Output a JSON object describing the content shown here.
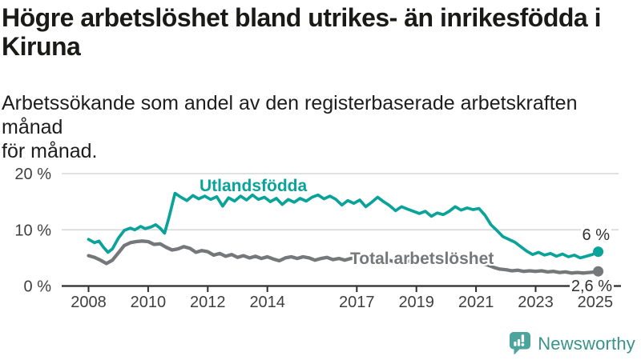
{
  "header": {
    "title_lines": [
      "Högre arbetslöshet bland utrikes- än inrikesfödda i",
      "Kiruna"
    ],
    "subtitle_lines": [
      "Arbetssökande som andel av den registerbaserade arbetskraften månad",
      "för månad."
    ]
  },
  "chart_data": {
    "type": "line",
    "title": "Högre arbetslöshet bland utrikes- än inrikesfödda i Kiruna",
    "subtitle": "Arbetssökande som andel av den registerbaserade arbetskraften månad för månad.",
    "unit": "%",
    "xlim": [
      2008,
      2025.3
    ],
    "ylim": [
      0,
      20
    ],
    "grid": "horizontal-only",
    "legend_position": "inline-labels",
    "x_ticks": [
      {
        "value": 2008,
        "label": "2008"
      },
      {
        "value": 2010,
        "label": "2010"
      },
      {
        "value": 2012,
        "label": "2012"
      },
      {
        "value": 2014,
        "label": "2014"
      },
      {
        "value": 2017,
        "label": "2017"
      },
      {
        "value": 2019,
        "label": "2019"
      },
      {
        "value": 2021,
        "label": "2021"
      },
      {
        "value": 2023,
        "label": "2023"
      },
      {
        "value": 2025,
        "label": "2025"
      }
    ],
    "y_ticks": [
      {
        "value": 0,
        "label": "0 %"
      },
      {
        "value": 10,
        "label": "10 %"
      },
      {
        "value": 20,
        "label": "20 %"
      }
    ],
    "series": [
      {
        "name": "Utlandsfödda",
        "color": "#0aa39a",
        "end_label": "6 %",
        "end_value": 6,
        "points": [
          [
            2008.0,
            8.3
          ],
          [
            2008.2,
            7.7
          ],
          [
            2008.35,
            8.0
          ],
          [
            2008.5,
            6.9
          ],
          [
            2008.65,
            6.0
          ],
          [
            2008.8,
            6.6
          ],
          [
            2009.0,
            8.5
          ],
          [
            2009.2,
            9.9
          ],
          [
            2009.4,
            10.3
          ],
          [
            2009.55,
            10.0
          ],
          [
            2009.75,
            10.6
          ],
          [
            2009.9,
            10.2
          ],
          [
            2010.1,
            10.5
          ],
          [
            2010.25,
            10.9
          ],
          [
            2010.4,
            10.3
          ],
          [
            2010.55,
            9.4
          ],
          [
            2010.7,
            12.2
          ],
          [
            2010.9,
            16.5
          ],
          [
            2011.1,
            15.8
          ],
          [
            2011.3,
            15.2
          ],
          [
            2011.5,
            16.1
          ],
          [
            2011.7,
            15.5
          ],
          [
            2011.9,
            16.0
          ],
          [
            2012.1,
            15.4
          ],
          [
            2012.3,
            15.9
          ],
          [
            2012.5,
            14.2
          ],
          [
            2012.7,
            15.7
          ],
          [
            2012.9,
            15.1
          ],
          [
            2013.1,
            16.0
          ],
          [
            2013.3,
            15.3
          ],
          [
            2013.5,
            16.2
          ],
          [
            2013.7,
            15.4
          ],
          [
            2013.9,
            15.8
          ],
          [
            2014.1,
            15.0
          ],
          [
            2014.3,
            15.6
          ],
          [
            2014.5,
            14.5
          ],
          [
            2014.7,
            15.4
          ],
          [
            2014.9,
            14.9
          ],
          [
            2015.1,
            15.6
          ],
          [
            2015.3,
            15.1
          ],
          [
            2015.5,
            15.8
          ],
          [
            2015.7,
            16.2
          ],
          [
            2015.9,
            15.5
          ],
          [
            2016.1,
            16.0
          ],
          [
            2016.3,
            15.4
          ],
          [
            2016.5,
            14.4
          ],
          [
            2016.7,
            15.2
          ],
          [
            2016.9,
            14.7
          ],
          [
            2017.1,
            15.3
          ],
          [
            2017.3,
            14.1
          ],
          [
            2017.5,
            14.9
          ],
          [
            2017.7,
            15.8
          ],
          [
            2017.9,
            15.0
          ],
          [
            2018.1,
            14.3
          ],
          [
            2018.3,
            13.4
          ],
          [
            2018.5,
            14.1
          ],
          [
            2018.7,
            13.7
          ],
          [
            2018.9,
            13.3
          ],
          [
            2019.1,
            12.9
          ],
          [
            2019.3,
            13.3
          ],
          [
            2019.5,
            12.4
          ],
          [
            2019.7,
            13.0
          ],
          [
            2019.9,
            12.7
          ],
          [
            2020.1,
            13.3
          ],
          [
            2020.3,
            14.1
          ],
          [
            2020.5,
            13.5
          ],
          [
            2020.7,
            13.9
          ],
          [
            2020.9,
            13.6
          ],
          [
            2021.1,
            13.8
          ],
          [
            2021.3,
            12.6
          ],
          [
            2021.5,
            10.9
          ],
          [
            2021.7,
            9.9
          ],
          [
            2021.9,
            8.8
          ],
          [
            2022.1,
            8.3
          ],
          [
            2022.3,
            7.8
          ],
          [
            2022.5,
            7.0
          ],
          [
            2022.7,
            6.2
          ],
          [
            2022.9,
            5.6
          ],
          [
            2023.1,
            6.0
          ],
          [
            2023.3,
            5.5
          ],
          [
            2023.5,
            5.8
          ],
          [
            2023.7,
            5.3
          ],
          [
            2023.9,
            5.7
          ],
          [
            2024.1,
            5.2
          ],
          [
            2024.3,
            5.5
          ],
          [
            2024.5,
            5.0
          ],
          [
            2024.7,
            5.3
          ],
          [
            2024.9,
            5.6
          ],
          [
            2025.1,
            6.1
          ]
        ]
      },
      {
        "name": "Total arbetslöshet",
        "color": "#76777a",
        "end_label": "2,6 %",
        "end_value": 2.6,
        "points": [
          [
            2008.0,
            5.4
          ],
          [
            2008.2,
            5.1
          ],
          [
            2008.4,
            4.6
          ],
          [
            2008.6,
            4.0
          ],
          [
            2008.8,
            4.6
          ],
          [
            2009.0,
            5.9
          ],
          [
            2009.2,
            7.2
          ],
          [
            2009.4,
            7.7
          ],
          [
            2009.6,
            7.9
          ],
          [
            2009.8,
            8.0
          ],
          [
            2010.0,
            7.9
          ],
          [
            2010.2,
            7.4
          ],
          [
            2010.4,
            7.5
          ],
          [
            2010.6,
            6.9
          ],
          [
            2010.8,
            6.4
          ],
          [
            2011.0,
            6.6
          ],
          [
            2011.2,
            7.0
          ],
          [
            2011.4,
            6.7
          ],
          [
            2011.6,
            6.0
          ],
          [
            2011.8,
            6.3
          ],
          [
            2012.0,
            6.1
          ],
          [
            2012.2,
            5.5
          ],
          [
            2012.4,
            5.8
          ],
          [
            2012.6,
            5.3
          ],
          [
            2012.8,
            5.6
          ],
          [
            2013.0,
            5.1
          ],
          [
            2013.2,
            5.4
          ],
          [
            2013.4,
            5.0
          ],
          [
            2013.6,
            5.3
          ],
          [
            2013.8,
            4.9
          ],
          [
            2014.0,
            5.2
          ],
          [
            2014.2,
            4.8
          ],
          [
            2014.4,
            4.5
          ],
          [
            2014.6,
            5.0
          ],
          [
            2014.8,
            5.2
          ],
          [
            2015.0,
            4.9
          ],
          [
            2015.2,
            5.2
          ],
          [
            2015.4,
            5.0
          ],
          [
            2015.6,
            4.6
          ],
          [
            2015.8,
            4.9
          ],
          [
            2016.0,
            5.1
          ],
          [
            2016.2,
            4.7
          ],
          [
            2016.4,
            4.9
          ],
          [
            2016.6,
            4.6
          ],
          [
            2016.8,
            4.9
          ],
          [
            2017.0,
            5.0
          ],
          [
            2017.2,
            4.7
          ],
          [
            2017.4,
            4.6
          ],
          [
            2017.6,
            4.8
          ],
          [
            2017.8,
            4.6
          ],
          [
            2018.0,
            4.7
          ],
          [
            2018.2,
            4.4
          ],
          [
            2018.4,
            4.6
          ],
          [
            2018.6,
            4.3
          ],
          [
            2018.8,
            4.5
          ],
          [
            2019.0,
            4.4
          ],
          [
            2019.2,
            4.2
          ],
          [
            2019.4,
            4.4
          ],
          [
            2019.6,
            4.5
          ],
          [
            2019.8,
            4.7
          ],
          [
            2020.0,
            4.8
          ],
          [
            2020.2,
            5.0
          ],
          [
            2020.4,
            4.9
          ],
          [
            2020.6,
            4.8
          ],
          [
            2020.8,
            4.6
          ],
          [
            2021.0,
            4.4
          ],
          [
            2021.2,
            4.1
          ],
          [
            2021.4,
            3.7
          ],
          [
            2021.6,
            3.3
          ],
          [
            2021.8,
            3.0
          ],
          [
            2022.0,
            2.9
          ],
          [
            2022.2,
            2.7
          ],
          [
            2022.4,
            2.8
          ],
          [
            2022.6,
            2.6
          ],
          [
            2022.8,
            2.7
          ],
          [
            2023.0,
            2.6
          ],
          [
            2023.2,
            2.7
          ],
          [
            2023.4,
            2.5
          ],
          [
            2023.6,
            2.6
          ],
          [
            2023.8,
            2.4
          ],
          [
            2024.0,
            2.5
          ],
          [
            2024.2,
            2.3
          ],
          [
            2024.4,
            2.4
          ],
          [
            2024.6,
            2.3
          ],
          [
            2024.8,
            2.4
          ],
          [
            2025.0,
            2.5
          ],
          [
            2025.1,
            2.6
          ]
        ]
      }
    ],
    "colors": {
      "axis": "#2b2b2b",
      "gridline": "#d7d7d7",
      "tick_text": "#3f3f3f"
    }
  },
  "footer": {
    "brand": "Newsworthy",
    "brand_color": "#38948b",
    "icon_color": "#4ba59d"
  }
}
